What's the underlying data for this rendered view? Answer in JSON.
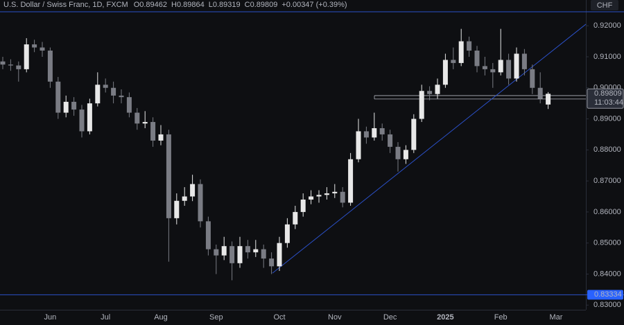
{
  "chart_data": {
    "type": "candlestick",
    "title": "U.S. Dollar / Swiss Franc, 1D, FXCM",
    "header_values": [
      "O0.89462",
      "H0.89864",
      "L0.89319",
      "C0.89809",
      "+0.00347 (+0.39%)"
    ],
    "currency": "CHF",
    "categories": [
      null,
      null,
      null,
      null,
      null,
      null,
      "Jun",
      null,
      null,
      null,
      null,
      null,
      null,
      "Jul",
      null,
      null,
      null,
      null,
      null,
      null,
      "Aug",
      null,
      null,
      null,
      null,
      null,
      null,
      "Sep",
      null,
      null,
      null,
      null,
      null,
      null,
      null,
      "Oct",
      null,
      null,
      null,
      null,
      null,
      null,
      "Nov",
      null,
      null,
      null,
      null,
      null,
      null,
      "Dec",
      null,
      null,
      null,
      null,
      null,
      null,
      "2025",
      null,
      null,
      null,
      null,
      null,
      null,
      "Feb",
      null,
      null,
      null,
      null,
      null,
      null,
      "Mar"
    ],
    "open": [
      0.9085,
      0.9075,
      0.9072,
      0.906,
      0.914,
      0.913,
      0.912,
      0.902,
      0.892,
      0.8955,
      0.893,
      0.886,
      0.895,
      0.901,
      0.9,
      0.8975,
      0.897,
      0.892,
      0.8885,
      0.889,
      0.883,
      0.885,
      0.858,
      0.8636,
      0.865,
      0.869,
      0.857,
      0.848,
      0.846,
      0.849,
      0.8435,
      0.849,
      0.847,
      0.848,
      0.845,
      0.8425,
      0.85,
      0.856,
      0.86,
      0.864,
      0.865,
      0.8655,
      0.866,
      0.8665,
      0.863,
      0.877,
      0.886,
      0.884,
      0.887,
      0.885,
      0.881,
      0.877,
      0.88,
      0.89,
      0.899,
      0.898,
      0.901,
      0.909,
      0.908,
      0.915,
      0.912,
      0.907,
      0.906,
      0.905,
      0.909,
      0.903,
      0.911,
      0.906,
      0.9,
      0.89462,
      null
    ],
    "high": [
      0.91,
      0.9092,
      0.9085,
      0.916,
      0.9155,
      0.9148,
      0.913,
      0.9035,
      0.8975,
      0.897,
      0.8945,
      0.8965,
      0.905,
      0.903,
      0.902,
      0.8995,
      0.8985,
      0.8935,
      0.8925,
      0.8905,
      0.888,
      0.8865,
      0.866,
      0.868,
      0.872,
      0.8705,
      0.8585,
      0.8495,
      0.852,
      0.8505,
      0.852,
      0.851,
      0.851,
      0.8495,
      0.847,
      0.852,
      0.858,
      0.862,
      0.866,
      0.867,
      0.867,
      0.868,
      0.869,
      0.868,
      0.879,
      0.89,
      0.8875,
      0.892,
      0.8885,
      0.8865,
      0.8825,
      0.8815,
      0.8915,
      0.901,
      0.9005,
      0.903,
      0.911,
      0.913,
      0.919,
      0.9165,
      0.9135,
      0.91,
      0.908,
      0.919,
      0.911,
      0.913,
      0.9125,
      0.9075,
      0.905,
      0.89864,
      null
    ],
    "low": [
      0.906,
      0.9055,
      0.902,
      0.905,
      0.9115,
      0.91,
      0.9,
      0.89,
      0.8905,
      0.891,
      0.884,
      0.885,
      0.894,
      0.8985,
      0.895,
      0.895,
      0.8905,
      0.8865,
      0.887,
      0.881,
      0.8815,
      0.844,
      0.856,
      0.862,
      0.8635,
      0.855,
      0.846,
      0.84,
      0.8445,
      0.838,
      0.842,
      0.845,
      0.8455,
      0.842,
      0.84,
      0.841,
      0.8485,
      0.8545,
      0.8585,
      0.8625,
      0.863,
      0.864,
      0.8645,
      0.8615,
      0.862,
      0.876,
      0.882,
      0.883,
      0.883,
      0.879,
      0.873,
      0.8755,
      0.879,
      0.889,
      0.896,
      0.8965,
      0.9,
      0.906,
      0.907,
      0.91,
      0.905,
      0.904,
      0.9,
      0.904,
      0.901,
      0.902,
      0.904,
      0.898,
      0.895,
      0.89319,
      null
    ],
    "close": [
      0.9075,
      0.9072,
      0.906,
      0.914,
      0.913,
      0.912,
      0.902,
      0.892,
      0.8955,
      0.893,
      0.886,
      0.895,
      0.901,
      0.9,
      0.8975,
      0.897,
      0.892,
      0.8885,
      0.889,
      0.883,
      0.885,
      0.858,
      0.8636,
      0.865,
      0.869,
      0.857,
      0.848,
      0.846,
      0.849,
      0.8435,
      0.849,
      0.847,
      0.848,
      0.845,
      0.8425,
      0.85,
      0.856,
      0.86,
      0.864,
      0.865,
      0.8655,
      0.866,
      0.8665,
      0.863,
      0.877,
      0.886,
      0.884,
      0.887,
      0.885,
      0.881,
      0.877,
      0.88,
      0.89,
      0.899,
      0.898,
      0.901,
      0.909,
      0.908,
      0.915,
      0.912,
      0.907,
      0.906,
      0.905,
      0.909,
      0.903,
      0.911,
      0.906,
      0.9,
      0.8965,
      0.89809,
      null
    ],
    "up_color": "#e8e8e8",
    "down_color": "#7a7c84",
    "line_color": "#2b50c8",
    "ylim": [
      0.8285,
      0.9283
    ],
    "yticks": [
      {
        "value": 0.83,
        "label": "0.83000"
      },
      {
        "value": 0.84,
        "label": "0.84000"
      },
      {
        "value": 0.85,
        "label": "0.85000"
      },
      {
        "value": 0.86,
        "label": "0.86000"
      },
      {
        "value": 0.87,
        "label": "0.87000"
      },
      {
        "value": 0.88,
        "label": "0.88000"
      },
      {
        "value": 0.89,
        "label": "0.89000"
      },
      {
        "value": 0.9,
        "label": "0.90000"
      },
      {
        "value": 0.91,
        "label": "0.91000"
      },
      {
        "value": 0.92,
        "label": "0.92000"
      }
    ],
    "grid": false,
    "last_price": 0.89809,
    "countdown": "11:03:44",
    "hline_top": 0.9245,
    "hline_bottom": 0.83334,
    "support_levels": [
      0.8975,
      0.8964
    ],
    "trendline": [
      0.8403,
      0.9205
    ]
  }
}
